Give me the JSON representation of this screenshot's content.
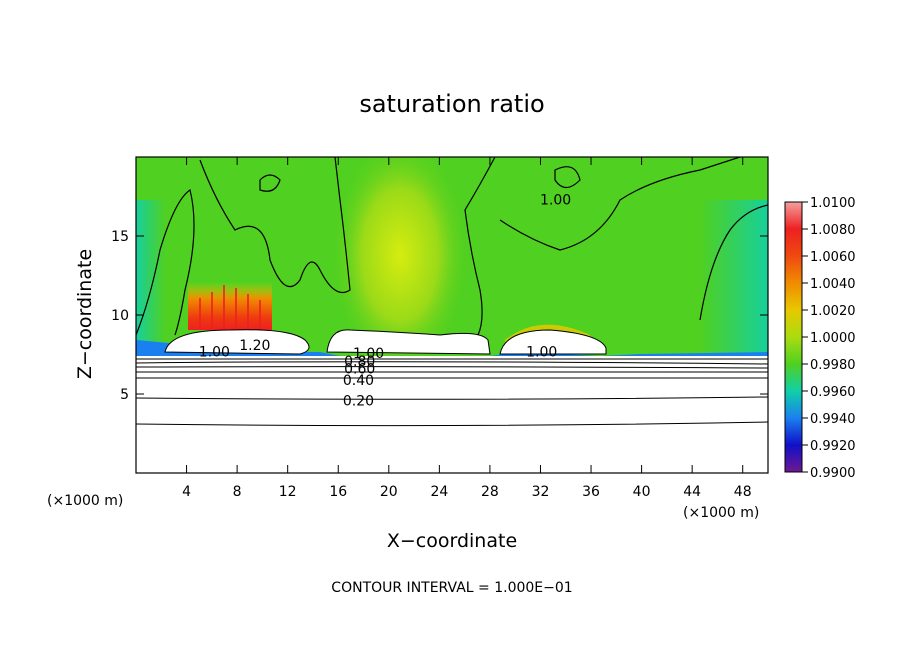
{
  "chart_data": {
    "type": "heatmap",
    "title": "saturation ratio",
    "xlabel": "X−coordinate",
    "ylabel": "Z−coordinate",
    "x_unit_left": "(×1000 m)",
    "x_unit_right": "(×1000 m)",
    "xlim": [
      0,
      50
    ],
    "ylim": [
      0,
      20
    ],
    "xticks": [
      4,
      8,
      12,
      16,
      20,
      24,
      28,
      32,
      36,
      40,
      44,
      48
    ],
    "xtick_labels": [
      "4",
      "8",
      "12",
      "16",
      "20",
      "24",
      "28",
      "32",
      "36",
      "40",
      "44",
      "48"
    ],
    "yticks": [
      5,
      10,
      15
    ],
    "ytick_labels": [
      "5",
      "10",
      "15"
    ],
    "footer": "CONTOUR INTERVAL = 1.000E−01",
    "colorbar": {
      "min": 0.99,
      "max": 1.01,
      "labels": [
        "1.0100",
        "1.0080",
        "1.0060",
        "1.0040",
        "1.0020",
        "1.0000",
        "0.9980",
        "0.9960",
        "0.9940",
        "0.9920",
        "0.9900"
      ],
      "colors": [
        "#f4a0a0",
        "#ee2020",
        "#ee4a10",
        "#f08c00",
        "#e8c800",
        "#aadc10",
        "#50d020",
        "#10d0a8",
        "#1a80f0",
        "#1010c8",
        "#701890"
      ]
    },
    "contour_labels": [
      {
        "text": "1.00",
        "x": 6.2,
        "z": 7.7
      },
      {
        "text": "1.20",
        "x": 9.4,
        "z": 8.1
      },
      {
        "text": "1.00",
        "x": 18.4,
        "z": 7.6
      },
      {
        "text": "0.80",
        "x": 17.7,
        "z": 7.1
      },
      {
        "text": "0.60",
        "x": 17.7,
        "z": 6.6
      },
      {
        "text": "0.40",
        "x": 17.6,
        "z": 5.9
      },
      {
        "text": "0.20",
        "x": 17.6,
        "z": 4.6
      },
      {
        "text": "1.00",
        "x": 32.1,
        "z": 7.7
      },
      {
        "text": "1.00",
        "x": 33.2,
        "z": 17.3
      }
    ],
    "contour_levels_below": [
      7.1,
      6.8,
      6.45,
      6.05,
      5.6,
      4.6,
      3.2
    ],
    "saturated_regions": [
      {
        "x0": 2.2,
        "x1": 13.3,
        "z0": 7.4,
        "z1": 8.4
      },
      {
        "x0": 15.3,
        "x1": 27.4,
        "z0": 7.4,
        "z1": 8.6
      },
      {
        "x0": 29.3,
        "x1": 37.8,
        "z0": 7.4,
        "z1": 8.2
      }
    ]
  }
}
